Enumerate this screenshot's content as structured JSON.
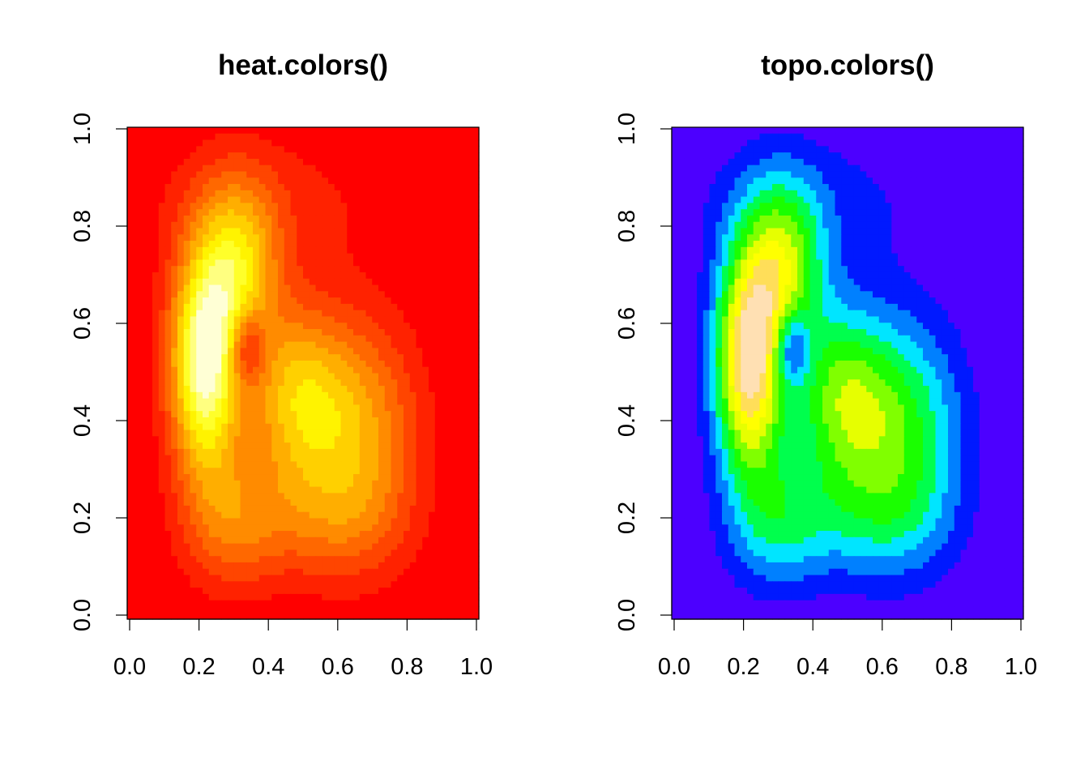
{
  "chart_data": [
    {
      "type": "heatmap",
      "title": "heat.colors()",
      "xlabel": "",
      "ylabel": "",
      "palette": "heat.colors",
      "palette_colors": [
        "#FF0000",
        "#FF2200",
        "#FF4500",
        "#FF6800",
        "#FF8B00",
        "#FFAE00",
        "#FFD000",
        "#FFF300",
        "#FFFF2A",
        "#FFFF80",
        "#FFFFD5"
      ],
      "xlim": [
        0,
        1
      ],
      "ylim": [
        0,
        1
      ],
      "x_ticks": [
        "0.0",
        "0.2",
        "0.4",
        "0.6",
        "0.8",
        "1.0"
      ],
      "y_ticks": [
        "0.0",
        "0.2",
        "0.4",
        "0.6",
        "0.8",
        "1.0"
      ],
      "grid": false
    },
    {
      "type": "heatmap",
      "title": "topo.colors()",
      "xlabel": "",
      "ylabel": "",
      "palette": "topo.colors",
      "palette_colors": [
        "#4C00FF",
        "#0019FF",
        "#0080FF",
        "#00E5FF",
        "#00FF4D",
        "#1AFF00",
        "#80FF00",
        "#E6FF00",
        "#FFFF00",
        "#FFDE59",
        "#FFE0B3"
      ],
      "xlim": [
        0,
        1
      ],
      "ylim": [
        0,
        1
      ],
      "x_ticks": [
        "0.0",
        "0.2",
        "0.4",
        "0.6",
        "0.8",
        "1.0"
      ],
      "y_ticks": [
        "0.0",
        "0.2",
        "0.4",
        "0.6",
        "0.8",
        "1.0"
      ],
      "grid": false
    }
  ]
}
